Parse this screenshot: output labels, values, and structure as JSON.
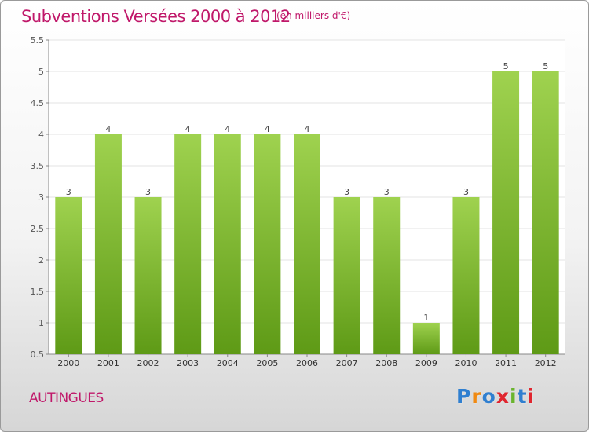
{
  "header": {
    "title": "Subventions Versées 2000 à 2012",
    "subtitle": "(en milliers d'€)"
  },
  "footer": {
    "commune": "AUTINGUES",
    "logo_text": "Proxiti"
  },
  "colors": {
    "accent": "#c0186a",
    "bar_top": "#9fd24f",
    "bar_bottom": "#5e9a16",
    "logo": [
      "#2f7fd0",
      "#f08a12",
      "#2f7fd0",
      "#e0262f",
      "#6ab42e",
      "#2f7fd0",
      "#e0262f"
    ]
  },
  "chart_data": {
    "type": "bar",
    "title": "Subventions Versées 2000 à 2012",
    "subtitle": "(en milliers d'€)",
    "categories": [
      "2000",
      "2001",
      "2002",
      "2003",
      "2004",
      "2005",
      "2006",
      "2007",
      "2008",
      "2009",
      "2010",
      "2011",
      "2012"
    ],
    "values": [
      3,
      4,
      3,
      4,
      4,
      4,
      4,
      3,
      3,
      1,
      3,
      5,
      5
    ],
    "data_labels": [
      "3",
      "4",
      "3",
      "4",
      "4",
      "4",
      "4",
      "3",
      "3",
      "1",
      "3",
      "5",
      "5"
    ],
    "ylim": [
      0.5,
      5.5
    ],
    "yticks": [
      0.5,
      1,
      1.5,
      2,
      2.5,
      3,
      3.5,
      4,
      4.5,
      5,
      5.5
    ],
    "ytick_labels": [
      "0.5",
      "1",
      "1.5",
      "2",
      "2.5",
      "3",
      "3.5",
      "4",
      "4.5",
      "5",
      "5.5"
    ],
    "xlabel": "",
    "ylabel": "",
    "grid": true,
    "legend": "none"
  }
}
